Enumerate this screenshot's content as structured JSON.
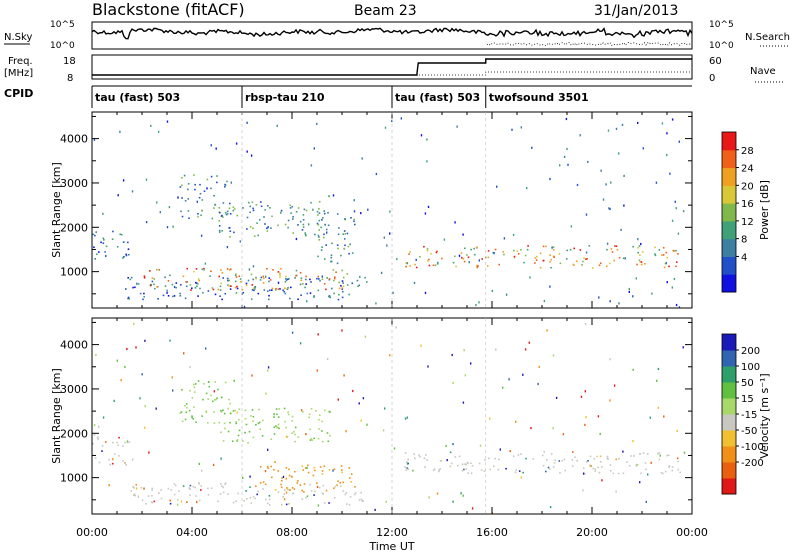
{
  "header": {
    "station": "Blackstone (fitACF)",
    "beam": "Beam 23",
    "date": "31/Jan/2013"
  },
  "top_panels": {
    "nsky_label": "N.Sky",
    "nsky_ticks": [
      "10^5",
      "10^0"
    ],
    "nsearch_label": "N.Search",
    "nsearch_ticks": [
      "10^5",
      "10^0"
    ],
    "freq_label_1": "Freq.",
    "freq_label_2": "[MHz]",
    "freq_ticks": [
      "18",
      "8"
    ],
    "nave_label": "Nave",
    "nave_ticks": [
      "60",
      "0"
    ],
    "cpid_label": "CPID",
    "cpid_segments": [
      {
        "label": "tau (fast) 503",
        "start_h": 0.0
      },
      {
        "label": "rbsp-tau 210",
        "start_h": 6.0
      },
      {
        "label": "tau (fast) 503",
        "start_h": 12.0
      },
      {
        "label": "twofsound 3501",
        "start_h": 15.75
      }
    ]
  },
  "power_colorbar": {
    "label": "Power [dB]",
    "ticks": [
      "4",
      "8",
      "12",
      "16",
      "20",
      "24",
      "28"
    ],
    "colors": [
      "#1010e0",
      "#2050c8",
      "#3c7fa0",
      "#40a078",
      "#80b84c",
      "#d8c838",
      "#f0a020",
      "#f06018",
      "#e81818"
    ]
  },
  "velocity_colorbar": {
    "label": "Velocity [m s⁻¹]",
    "ticks": [
      "200",
      "100",
      "50",
      "15",
      "-15",
      "-50",
      "-100",
      "-200"
    ],
    "colors": [
      "#1a1ab8",
      "#2e64b0",
      "#2e9e6a",
      "#60c040",
      "#a8d86a",
      "#c8c8c0",
      "#f0c030",
      "#f09018",
      "#e86010",
      "#e01818"
    ]
  },
  "chart_data": [
    {
      "type": "heatmap",
      "title": "",
      "xlabel": "Time UT",
      "ylabel": "Slant Range [km]",
      "x_ticks": [
        "00:00",
        "04:00",
        "08:00",
        "12:00",
        "16:00",
        "20:00",
        "00:00"
      ],
      "y_ticks": [
        "1000",
        "2000",
        "3000",
        "4000"
      ],
      "xlim_hours": [
        0,
        24
      ],
      "ylim_km": [
        180,
        4600
      ],
      "quantity": "Power [dB]",
      "scatter_regions": [
        {
          "t0": 1.3,
          "t1": 11.0,
          "r0": 380,
          "r1": 900,
          "level": "low"
        },
        {
          "t0": 2.0,
          "t1": 10.5,
          "r0": 600,
          "r1": 1100,
          "level": "high"
        },
        {
          "t0": 3.5,
          "t1": 5.5,
          "r0": 2200,
          "r1": 3200,
          "level": "mid"
        },
        {
          "t0": 5.0,
          "t1": 9.5,
          "r0": 1800,
          "r1": 2600,
          "level": "mid"
        },
        {
          "t0": 9.0,
          "t1": 10.5,
          "r0": 1200,
          "r1": 2400,
          "level": "mid"
        },
        {
          "t0": 12.5,
          "t1": 23.5,
          "r0": 1100,
          "r1": 1600,
          "level": "high"
        },
        {
          "t0": 0.0,
          "t1": 1.5,
          "r0": 1300,
          "r1": 2000,
          "level": "low"
        }
      ]
    },
    {
      "type": "heatmap",
      "title": "",
      "xlabel": "Time UT",
      "ylabel": "Slant Range [km]",
      "x_ticks": [
        "00:00",
        "04:00",
        "08:00",
        "12:00",
        "16:00",
        "20:00",
        "00:00"
      ],
      "y_ticks": [
        "1000",
        "2000",
        "3000",
        "4000"
      ],
      "xlim_hours": [
        0,
        24
      ],
      "ylim_km": [
        180,
        4600
      ],
      "quantity": "Velocity [m s⁻¹]",
      "scatter_regions": [
        {
          "t0": 1.5,
          "t1": 11.0,
          "r0": 400,
          "r1": 900,
          "level": "ground"
        },
        {
          "t0": 6.5,
          "t1": 10.5,
          "r0": 700,
          "r1": 1300,
          "level": "neg"
        },
        {
          "t0": 3.5,
          "t1": 5.5,
          "r0": 2200,
          "r1": 3200,
          "level": "pos"
        },
        {
          "t0": 5.0,
          "t1": 9.5,
          "r0": 1800,
          "r1": 2600,
          "level": "pos"
        },
        {
          "t0": 12.5,
          "t1": 23.5,
          "r0": 1100,
          "r1": 1600,
          "level": "ground"
        },
        {
          "t0": 0.0,
          "t1": 1.5,
          "r0": 1300,
          "r1": 2000,
          "level": "ground"
        }
      ]
    }
  ]
}
